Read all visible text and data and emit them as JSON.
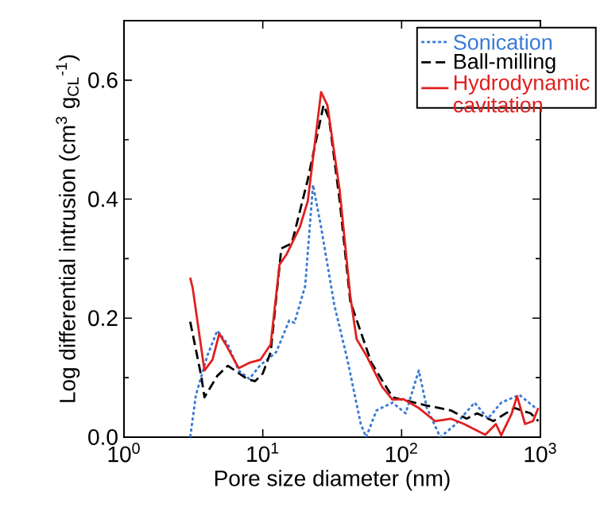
{
  "chart_data": {
    "type": "line",
    "xlabel": "Pore size diameter (nm)",
    "ylabel": "Log differential intrusion (cm$^{3}$ g$_{CL}$$^{-1}$)",
    "log": "x",
    "xlim": [
      1,
      1000
    ],
    "ylim": [
      0,
      0.7
    ],
    "xticks": [
      {
        "value": 1,
        "label": "10$^{0}$"
      },
      {
        "value": 10,
        "label": "10$^{1}$"
      },
      {
        "value": 100,
        "label": "10$^{2}$"
      },
      {
        "value": 1000,
        "label": "10$^{3}$"
      }
    ],
    "yticks": [
      {
        "value": 0,
        "label": "0.0"
      },
      {
        "value": 0.2,
        "label": "0.2"
      },
      {
        "value": 0.4,
        "label": "0.4"
      },
      {
        "value": 0.6,
        "label": "0.6"
      }
    ],
    "grid": false,
    "legend": "top right",
    "series": [
      {
        "name": "Sonication",
        "color": "#3a7bd5",
        "line_style": "dotted",
        "x": [
          3.0,
          3.3,
          4.0,
          4.7,
          5.6,
          6.7,
          8.0,
          9.6,
          12.5,
          15.5,
          16.9,
          20.2,
          23.0,
          26.3,
          32.7,
          40.8,
          50.8,
          55.5,
          66,
          86,
          107,
          133,
          152,
          190,
          246,
          336,
          418,
          522,
          706,
          922
        ],
        "values": [
          0,
          0.071,
          0.138,
          0.179,
          0.156,
          0.112,
          0.098,
          0.121,
          0.143,
          0.196,
          0.192,
          0.254,
          0.424,
          0.353,
          0.223,
          0.129,
          0.022,
          0,
          0.045,
          0.058,
          0.04,
          0.112,
          0.049,
          0,
          0.022,
          0.058,
          0.031,
          0.058,
          0.071,
          0.049
        ]
      },
      {
        "name": "Ball-milling",
        "color": "#000000",
        "line_style": "dashed",
        "x": [
          3.0,
          3.6,
          3.8,
          4.7,
          5.6,
          7.7,
          8.8,
          10.0,
          11.4,
          13.6,
          16.2,
          21.1,
          27.4,
          30.0,
          35.8,
          42.7,
          60.6,
          86,
          146,
          226,
          294,
          350,
          458,
          650,
          850,
          966
        ],
        "values": [
          0.194,
          0.103,
          0.067,
          0.103,
          0.12,
          0.098,
          0.094,
          0.107,
          0.143,
          0.317,
          0.326,
          0.433,
          0.558,
          0.536,
          0.397,
          0.228,
          0.125,
          0.067,
          0.054,
          0.045,
          0.031,
          0.04,
          0.027,
          0.049,
          0.04,
          0.027
        ]
      },
      {
        "name": "Hydrodynamic cavitation",
        "color": "#e0201f",
        "line_style": "solid",
        "x": [
          3.0,
          3.13,
          3.8,
          4.34,
          4.86,
          5.4,
          6.7,
          8.0,
          9.6,
          11.4,
          13.2,
          14.9,
          18.5,
          21.1,
          26.3,
          29.2,
          35.8,
          42.7,
          47.4,
          55.5,
          72.2,
          86,
          102.6,
          133,
          174,
          226,
          282,
          336,
          401,
          478,
          522,
          622,
          679,
          775,
          885,
          966
        ],
        "values": [
          0.268,
          0.25,
          0.112,
          0.13,
          0.174,
          0.156,
          0.116,
          0.125,
          0.13,
          0.156,
          0.29,
          0.308,
          0.353,
          0.397,
          0.58,
          0.558,
          0.415,
          0.237,
          0.165,
          0.138,
          0.085,
          0.063,
          0.064,
          0.049,
          0.027,
          0.031,
          0.022,
          0.013,
          0.004,
          0.022,
          0.003,
          0.04,
          0.069,
          0.022,
          0.027,
          0.049
        ]
      }
    ]
  }
}
